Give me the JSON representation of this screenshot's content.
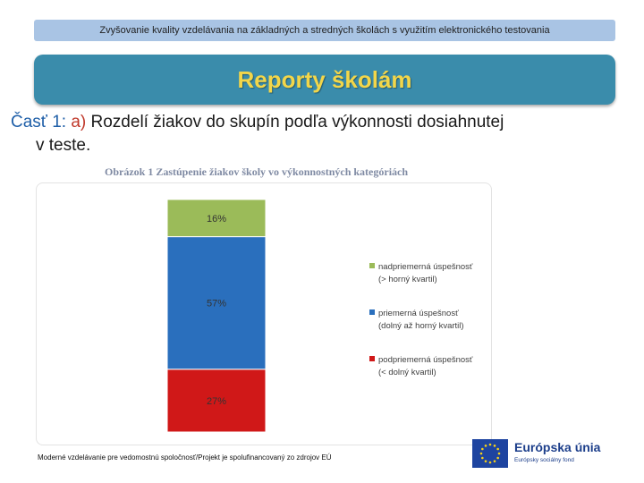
{
  "header": {
    "banner": "Zvyšovanie kvality vzdelávania na základných a stredných školách s využitím elektronického testovania",
    "title": "Reporty školám"
  },
  "heading": {
    "part": "Časť 1:",
    "letter": "a)",
    "text_line1": "Rozdelí žiakov do skupín podľa výkonnosti dosiahnutej",
    "text_line2": "v teste."
  },
  "caption": "Obrázok 1 Zastúpenie žiakov školy vo výkonnostných kategóriách",
  "chart_data": {
    "type": "bar",
    "stacked": true,
    "series": [
      {
        "name": "podpriemerná úspešnosť (< dolný kvartil)",
        "values": [
          27
        ],
        "label": "27%",
        "color": "#d01818"
      },
      {
        "name": "priemerná úspešnosť (dolný až horný kvartil)",
        "values": [
          57
        ],
        "label": "57%",
        "color": "#2a6fbd"
      },
      {
        "name": "nadpriemerná úspešnosť (> horný kvartil)",
        "values": [
          16
        ],
        "label": "16%",
        "color": "#9bbb59"
      }
    ],
    "legend": [
      {
        "line1": "nadpriemerná úspešnosť",
        "line2": "(> horný kvartil)",
        "color": "#9bbb59"
      },
      {
        "line1": "priemerná úspešnosť",
        "line2": "(dolný až horný kvartil)",
        "color": "#2a6fbd"
      },
      {
        "line1": "podpriemerná úspešnosť",
        "line2": "(< dolný kvartil)",
        "color": "#d01818"
      }
    ],
    "legend_position": "right",
    "ylim": [
      0,
      100
    ],
    "grid": false
  },
  "footer": {
    "note": "Moderné vzdelávanie pre vedomostnú spoločnosť/Projekt je spolufinancovaný zo zdrojov EÚ"
  },
  "eu": {
    "title": "Európska únia",
    "subtitle": "Európsky sociálny fond"
  }
}
